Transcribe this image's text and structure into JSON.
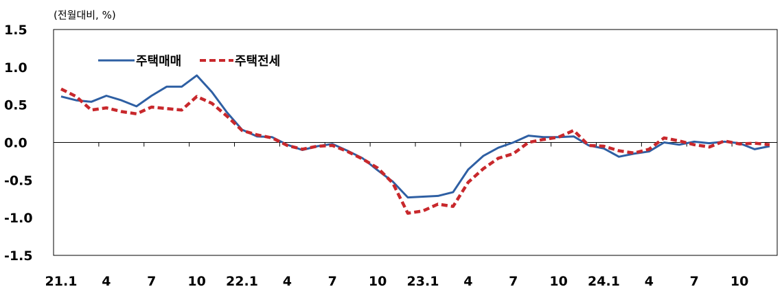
{
  "chart_data": {
    "type": "line",
    "unit_label": "(전월대비, %)",
    "ylim": [
      -1.5,
      1.5
    ],
    "y_ticks": [
      "1.5",
      "1.0",
      "0.5",
      "0.0",
      "-0.5",
      "-1.0",
      "-1.5"
    ],
    "x_tick_labels": [
      "21.1",
      "4",
      "7",
      "10",
      "22.1",
      "4",
      "7",
      "10",
      "23.1",
      "4",
      "7",
      "10",
      "24.1",
      "4",
      "7",
      "10"
    ],
    "x": [
      "21.1",
      "21.2",
      "21.3",
      "21.4",
      "21.5",
      "21.6",
      "21.7",
      "21.8",
      "21.9",
      "21.10",
      "21.11",
      "21.12",
      "22.1",
      "22.2",
      "22.3",
      "22.4",
      "22.5",
      "22.6",
      "22.7",
      "22.8",
      "22.9",
      "22.10",
      "22.11",
      "22.12",
      "23.1",
      "23.2",
      "23.3",
      "23.4",
      "23.5",
      "23.6",
      "23.7",
      "23.8",
      "23.9",
      "23.10",
      "23.11",
      "23.12",
      "24.1",
      "24.2",
      "24.3",
      "24.4",
      "24.5",
      "24.6",
      "24.7",
      "24.8",
      "24.9",
      "24.10",
      "24.11",
      "24.12"
    ],
    "legend_position": "top-left",
    "series": [
      {
        "name": "주택매매",
        "color": "#2e5fa3",
        "style": "solid",
        "values": [
          0.61,
          0.56,
          0.54,
          0.62,
          0.56,
          0.48,
          0.62,
          0.74,
          0.74,
          0.89,
          0.67,
          0.4,
          0.17,
          0.08,
          0.07,
          -0.03,
          -0.1,
          -0.05,
          -0.02,
          -0.11,
          -0.21,
          -0.37,
          -0.52,
          -0.73,
          -0.72,
          -0.71,
          -0.66,
          -0.36,
          -0.18,
          -0.07,
          0.0,
          0.09,
          0.07,
          0.07,
          0.08,
          -0.04,
          -0.08,
          -0.19,
          -0.15,
          -0.12,
          0.0,
          -0.03,
          0.01,
          -0.01,
          0.01,
          -0.01,
          -0.09,
          -0.05
        ]
      },
      {
        "name": "주택전세",
        "color": "#c8282c",
        "style": "dashed",
        "values": [
          0.71,
          0.61,
          0.43,
          0.46,
          0.41,
          0.38,
          0.47,
          0.45,
          0.43,
          0.61,
          0.52,
          0.35,
          0.16,
          0.1,
          0.06,
          -0.04,
          -0.09,
          -0.05,
          -0.04,
          -0.12,
          -0.22,
          -0.34,
          -0.54,
          -0.94,
          -0.91,
          -0.82,
          -0.85,
          -0.53,
          -0.35,
          -0.21,
          -0.15,
          0.0,
          0.04,
          0.07,
          0.16,
          -0.04,
          -0.05,
          -0.11,
          -0.14,
          -0.09,
          0.06,
          0.02,
          -0.03,
          -0.06,
          0.02,
          -0.02,
          -0.01,
          -0.03
        ]
      }
    ]
  }
}
